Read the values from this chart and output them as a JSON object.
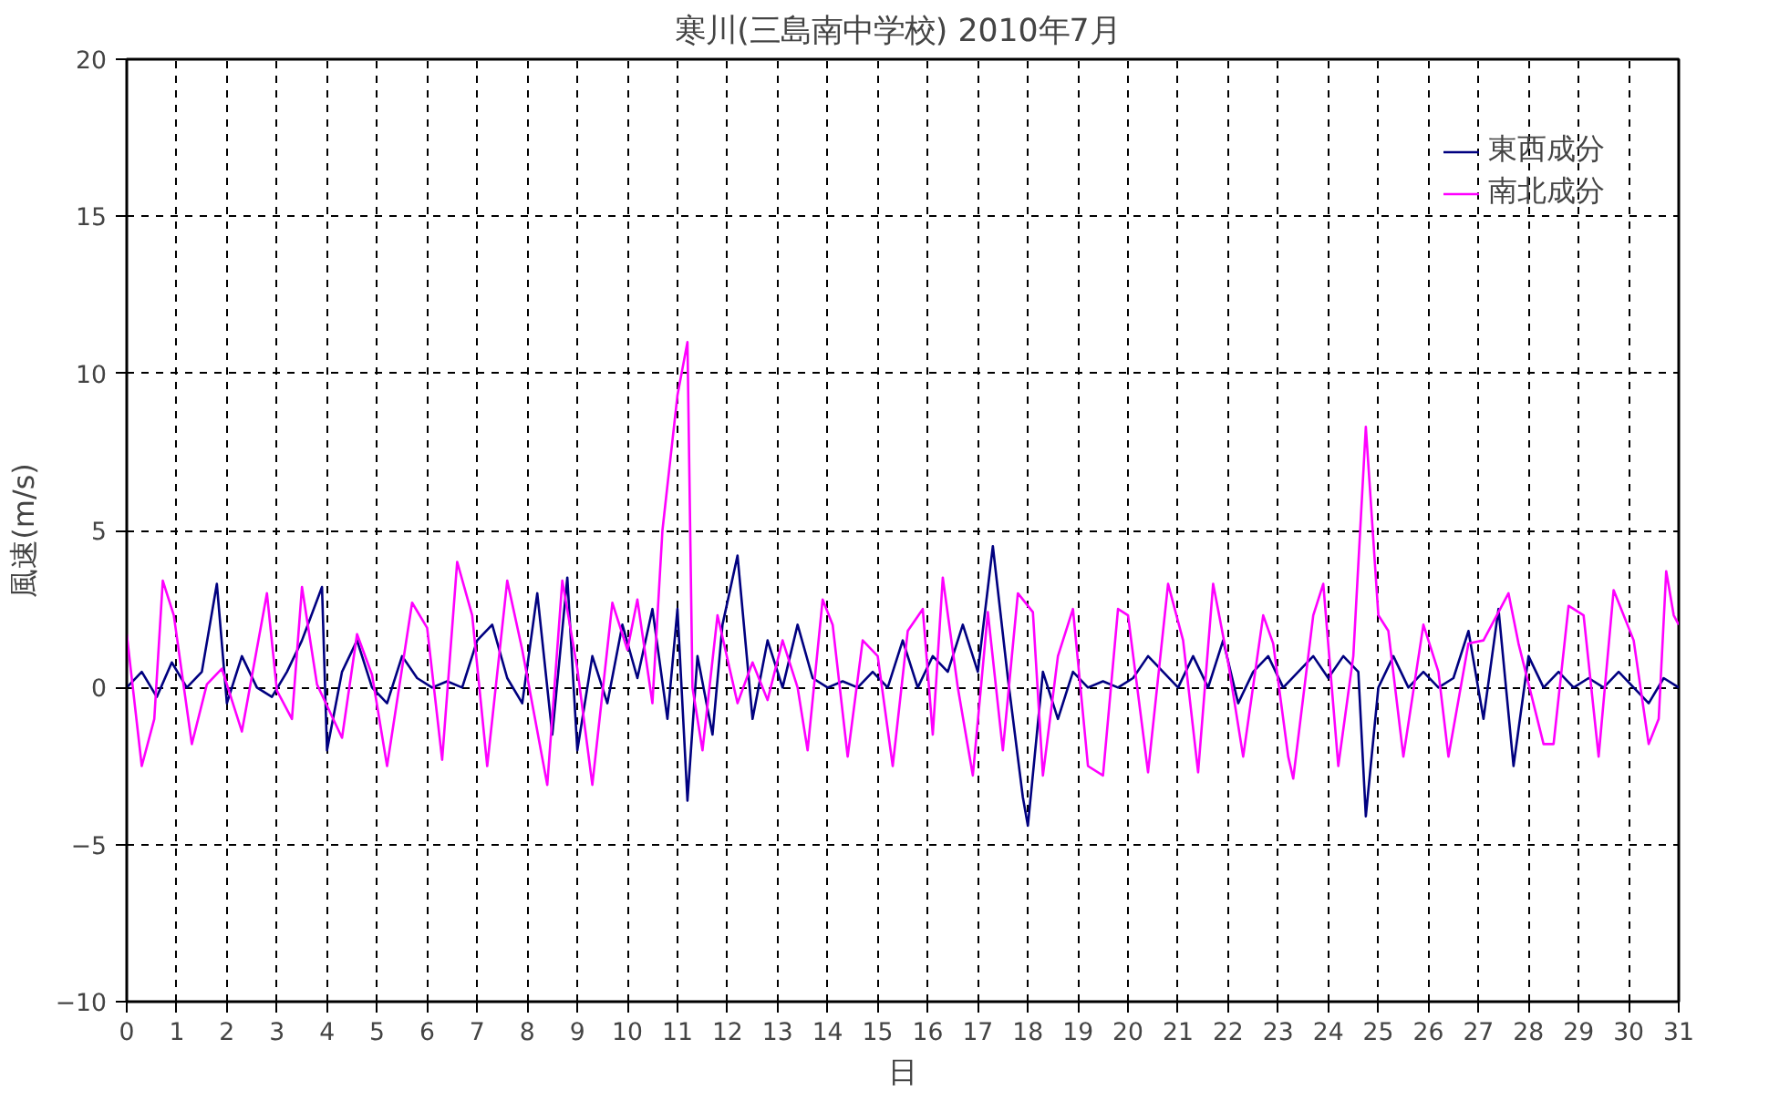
{
  "chart_data": {
    "type": "line",
    "title": "寒川(三島南中学校)  2010年7月",
    "xlabel": "日",
    "ylabel": "風速(m/s)",
    "xlim": [
      0,
      31
    ],
    "xticks": [
      0,
      1,
      2,
      3,
      4,
      5,
      6,
      7,
      8,
      9,
      10,
      11,
      12,
      13,
      14,
      15,
      16,
      17,
      18,
      19,
      20,
      21,
      22,
      23,
      24,
      25,
      26,
      27,
      28,
      29,
      30,
      31
    ],
    "ylim": [
      -10,
      20
    ],
    "yticks": [
      -10,
      -5,
      0,
      5,
      10,
      15,
      20
    ],
    "grid": true,
    "legend": "top right",
    "line_style": "solid",
    "series": [
      {
        "name": "東西成分",
        "color": "#000080",
        "x": [
          0,
          0.3,
          0.6,
          0.9,
          1.2,
          1.5,
          1.8,
          2.0,
          2.3,
          2.6,
          2.9,
          3.2,
          3.5,
          3.9,
          4.0,
          4.3,
          4.6,
          4.9,
          5.2,
          5.5,
          5.8,
          6.1,
          6.4,
          6.7,
          7.0,
          7.3,
          7.6,
          7.9,
          8.2,
          8.5,
          8.8,
          9.0,
          9.3,
          9.6,
          9.9,
          10.2,
          10.5,
          10.8,
          11.0,
          11.2,
          11.4,
          11.7,
          11.9,
          12.2,
          12.5,
          12.8,
          13.1,
          13.4,
          13.7,
          14.0,
          14.3,
          14.6,
          14.9,
          15.2,
          15.5,
          15.8,
          16.1,
          16.4,
          16.7,
          17.0,
          17.3,
          17.6,
          17.9,
          18.0,
          18.3,
          18.6,
          18.9,
          19.2,
          19.5,
          19.8,
          20.1,
          20.4,
          20.7,
          21.0,
          21.3,
          21.6,
          21.9,
          22.2,
          22.5,
          22.8,
          23.1,
          23.4,
          23.7,
          24.0,
          24.3,
          24.6,
          24.75,
          25.0,
          25.3,
          25.6,
          25.9,
          26.2,
          26.5,
          26.8,
          27.1,
          27.4,
          27.7,
          28.0,
          28.3,
          28.6,
          28.9,
          29.2,
          29.5,
          29.8,
          30.1,
          30.4,
          30.7,
          31
        ],
        "values": [
          0,
          0.5,
          -0.3,
          0.8,
          0,
          0.5,
          3.3,
          -0.5,
          1,
          0,
          -0.3,
          0.5,
          1.5,
          3.2,
          -2,
          0.5,
          1.5,
          0,
          -0.5,
          1,
          0.3,
          0,
          0.2,
          0,
          1.5,
          2,
          0.3,
          -0.5,
          3,
          -1.5,
          3.5,
          -2,
          1,
          -0.5,
          2,
          0.3,
          2.5,
          -1,
          2.5,
          -3.6,
          1,
          -1.5,
          2,
          4.2,
          -1,
          1.5,
          0,
          2,
          0.3,
          0,
          0.2,
          0,
          0.5,
          0,
          1.5,
          0,
          1,
          0.5,
          2,
          0.5,
          4.5,
          0.3,
          -3.5,
          -4.4,
          0.5,
          -1,
          0.5,
          0,
          0.2,
          0,
          0.3,
          1,
          0.5,
          0,
          1,
          0,
          1.5,
          -0.5,
          0.5,
          1,
          0,
          0.5,
          1,
          0.3,
          1,
          0.5,
          -4.1,
          0,
          1,
          0,
          0.5,
          0,
          0.3,
          1.8,
          -1,
          2.5,
          -2.5,
          1,
          0,
          0.5,
          0,
          0.3,
          0,
          0.5,
          0,
          -0.5,
          0.3,
          0
        ]
      },
      {
        "name": "南北成分",
        "color": "#ff00ff",
        "x": [
          0,
          0.3,
          0.55,
          0.72,
          0.94,
          1.3,
          1.6,
          1.9,
          2.3,
          2.8,
          3.0,
          3.3,
          3.5,
          3.8,
          4.3,
          4.6,
          4.9,
          5.2,
          5.7,
          6.0,
          6.3,
          6.6,
          6.9,
          7.2,
          7.6,
          7.9,
          8.4,
          8.7,
          9.0,
          9.3,
          9.7,
          10.0,
          10.2,
          10.5,
          10.7,
          11.0,
          11.2,
          11.3,
          11.5,
          11.8,
          12.2,
          12.5,
          12.8,
          13.1,
          13.4,
          13.6,
          13.9,
          14.1,
          14.4,
          14.7,
          15.0,
          15.3,
          15.6,
          15.9,
          16.1,
          16.3,
          16.6,
          16.9,
          17.2,
          17.5,
          17.8,
          18.1,
          18.3,
          18.6,
          18.9,
          19.2,
          19.5,
          19.8,
          20.0,
          20.4,
          20.8,
          21.1,
          21.4,
          21.7,
          22.0,
          22.3,
          22.7,
          22.9,
          23.2,
          23.3,
          23.7,
          23.9,
          24.2,
          24.5,
          24.75,
          25.0,
          25.2,
          25.5,
          25.9,
          26.2,
          26.4,
          26.8,
          27.1,
          27.6,
          27.8,
          28.3,
          28.5,
          28.8,
          29.1,
          29.4,
          29.7,
          30.1,
          30.4,
          30.6,
          30.75,
          30.9,
          31
        ],
        "values": [
          1.7,
          -2.5,
          -1,
          3.4,
          2.3,
          -1.8,
          0.1,
          0.6,
          -1.4,
          3,
          -0.1,
          -1,
          3.2,
          0.1,
          -1.6,
          1.7,
          0.4,
          -2.5,
          2.7,
          1.9,
          -2.3,
          4,
          2.3,
          -2.5,
          3.4,
          1.2,
          -3.1,
          3.4,
          0.6,
          -3.1,
          2.7,
          1.2,
          2.8,
          -0.5,
          5,
          9.3,
          11,
          0,
          -2,
          2.3,
          -0.5,
          0.8,
          -0.4,
          1.5,
          0,
          -2,
          2.8,
          2,
          -2.2,
          1.5,
          1,
          -2.5,
          1.8,
          2.5,
          -1.5,
          3.5,
          0,
          -2.8,
          2.4,
          -2,
          3,
          2.4,
          -2.8,
          1,
          2.5,
          -2.5,
          -2.8,
          2.5,
          2.3,
          -2.7,
          3.3,
          1.5,
          -2.7,
          3.3,
          0.8,
          -2.2,
          2.3,
          1.4,
          -2.2,
          -2.9,
          2.3,
          3.3,
          -2.5,
          1,
          8.3,
          2.3,
          1.8,
          -2.2,
          2,
          0.5,
          -2.2,
          1.4,
          1.5,
          3,
          1.4,
          -1.8,
          -1.8,
          2.6,
          2.3,
          -2.2,
          3.1,
          1.5,
          -1.8,
          -1,
          3.7,
          2.3,
          2
        ]
      }
    ]
  }
}
